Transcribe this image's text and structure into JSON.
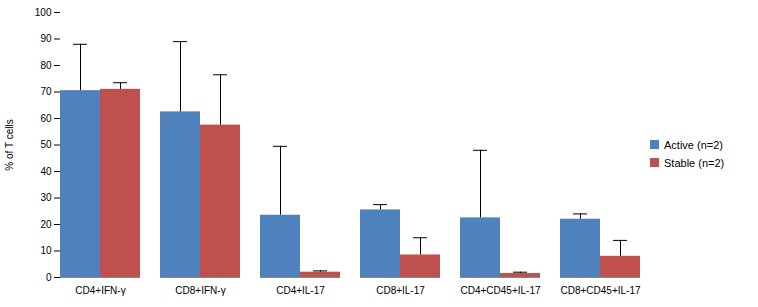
{
  "chart_data": {
    "type": "bar",
    "categories": [
      "CD4+IFN-γ",
      "CD8+IFN-γ",
      "CD4+IL-17",
      "CD8+IL-17",
      "CD4+CD45+IL-17",
      "CD8+CD45+IL-17"
    ],
    "series": [
      {
        "name": "Active (n=2)",
        "color": "#4f81bd",
        "values": [
          70.5,
          62.5,
          23.5,
          25.5,
          22.5,
          22
        ],
        "errors": [
          17.5,
          26.5,
          26,
          2,
          25.5,
          2
        ]
      },
      {
        "name": "Stable (n=2)",
        "color": "#c0504d",
        "values": [
          71,
          57.5,
          2,
          8.5,
          1.5,
          8
        ],
        "errors": [
          2.5,
          19,
          0.5,
          6.5,
          0.5,
          6
        ]
      }
    ],
    "y_label": "% of T cells",
    "ylim": [
      0,
      100
    ],
    "yticks": [
      0,
      10,
      20,
      30,
      40,
      50,
      60,
      70,
      80,
      90,
      100
    ],
    "grid": false,
    "legend": "right"
  }
}
